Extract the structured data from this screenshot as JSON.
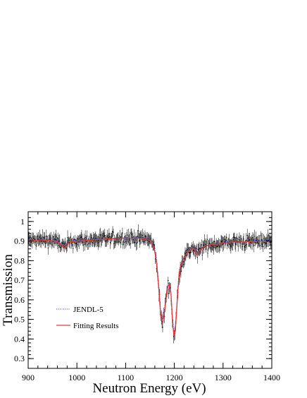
{
  "chart_data": {
    "type": "line",
    "xlabel": "Neutron Energy (eV)",
    "ylabel": "Transmission",
    "xlim": [
      900,
      1400
    ],
    "ylim": [
      0.25,
      1.05
    ],
    "x_ticks": [
      "900",
      "1000",
      "1100",
      "1200",
      "1300",
      "1400"
    ],
    "y_ticks": [
      "0.3",
      "0.4",
      "0.5",
      "0.6",
      "0.7",
      "0.8",
      "0.9",
      "1"
    ],
    "legend_position": "lower-left",
    "grid": false,
    "series": [
      {
        "name": "JENDL-5",
        "style": "dotted",
        "color": "#3b3bd6",
        "x": [
          900,
          920,
          940,
          955,
          965,
          975,
          985,
          1000,
          1030,
          1060,
          1090,
          1110,
          1130,
          1150,
          1158,
          1163,
          1168,
          1172,
          1176,
          1180,
          1185,
          1189,
          1193,
          1196,
          1199,
          1202,
          1206,
          1210,
          1215,
          1222,
          1232,
          1240,
          1246,
          1252,
          1260,
          1270,
          1280,
          1290,
          1300,
          1320,
          1340,
          1370,
          1400
        ],
        "y": [
          0.905,
          0.91,
          0.91,
          0.905,
          0.895,
          0.88,
          0.9,
          0.905,
          0.91,
          0.915,
          0.915,
          0.92,
          0.92,
          0.91,
          0.88,
          0.82,
          0.68,
          0.54,
          0.5,
          0.56,
          0.66,
          0.69,
          0.64,
          0.52,
          0.43,
          0.46,
          0.62,
          0.75,
          0.8,
          0.83,
          0.86,
          0.87,
          0.84,
          0.855,
          0.875,
          0.885,
          0.885,
          0.89,
          0.895,
          0.9,
          0.9,
          0.905,
          0.905
        ]
      },
      {
        "name": "Fitting Results",
        "style": "solid",
        "color": "#e23a3a",
        "x": [
          900,
          920,
          940,
          955,
          965,
          975,
          985,
          1000,
          1030,
          1060,
          1090,
          1110,
          1130,
          1150,
          1158,
          1163,
          1168,
          1172,
          1176,
          1180,
          1185,
          1189,
          1193,
          1196,
          1199,
          1202,
          1206,
          1210,
          1215,
          1222,
          1232,
          1240,
          1246,
          1252,
          1260,
          1270,
          1280,
          1290,
          1300,
          1320,
          1340,
          1370,
          1400
        ],
        "y": [
          0.9,
          0.905,
          0.905,
          0.9,
          0.89,
          0.865,
          0.895,
          0.9,
          0.905,
          0.91,
          0.915,
          0.915,
          0.915,
          0.905,
          0.87,
          0.8,
          0.66,
          0.52,
          0.48,
          0.54,
          0.65,
          0.68,
          0.63,
          0.5,
          0.415,
          0.44,
          0.6,
          0.74,
          0.79,
          0.825,
          0.855,
          0.865,
          0.83,
          0.85,
          0.87,
          0.88,
          0.885,
          0.885,
          0.89,
          0.895,
          0.895,
          0.9,
          0.9
        ]
      },
      {
        "name": "",
        "style": "points-with-error-bars",
        "color": "#000000"
      }
    ]
  }
}
